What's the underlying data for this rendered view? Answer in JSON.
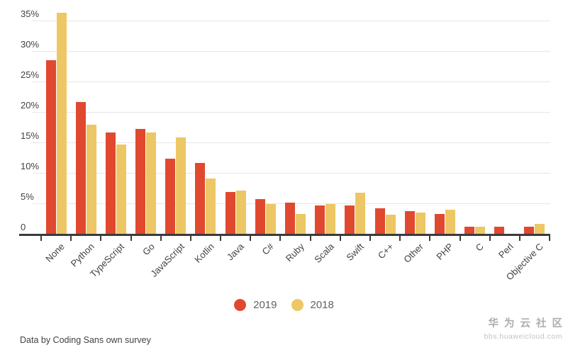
{
  "chart_data": {
    "type": "bar",
    "title": "",
    "xlabel": "",
    "ylabel": "",
    "categories": [
      "None",
      "Python",
      "TypeScript",
      "Go",
      "JavaScript",
      "Kotlin",
      "Java",
      "C#",
      "Ruby",
      "Scala",
      "Swift",
      "C++",
      "Other",
      "PHP",
      "C",
      "Perl",
      "Objective C"
    ],
    "series": [
      {
        "name": "2019",
        "color": "#e0492f",
        "values": [
          28.5,
          21.6,
          16.6,
          17.2,
          12.3,
          11.6,
          6.9,
          5.7,
          5.1,
          4.6,
          4.6,
          4.2,
          3.7,
          3.2,
          1.2,
          1.2,
          1.2
        ]
      },
      {
        "name": "2018",
        "color": "#edc765",
        "values": [
          36.3,
          17.9,
          14.6,
          16.6,
          15.8,
          9.1,
          7.1,
          4.9,
          3.2,
          4.9,
          6.8,
          3.1,
          3.5,
          3.9,
          1.2,
          0,
          1.6
        ]
      }
    ],
    "ylim": [
      0,
      35
    ],
    "ytick_step": 5,
    "ytick_labels": [
      "0",
      "5%",
      "10%",
      "15%",
      "20%",
      "25%",
      "30%",
      "35%"
    ],
    "grid": true,
    "legend_position": "bottom",
    "bar_unit": "percent"
  },
  "footer": {
    "source_note": "Data by Coding Sans own survey"
  },
  "watermark": {
    "title": "华为云社区",
    "url": "bbs.huaweicloud.com"
  },
  "colors": {
    "series_2019": "#e0492f",
    "series_2018": "#edc765",
    "gridline": "#e6e6e6",
    "axis": "#3b3b3b",
    "axis_text": "#424242",
    "legend_text": "#616161",
    "watermark_text": "#aeaeae",
    "background": "#ffffff"
  }
}
